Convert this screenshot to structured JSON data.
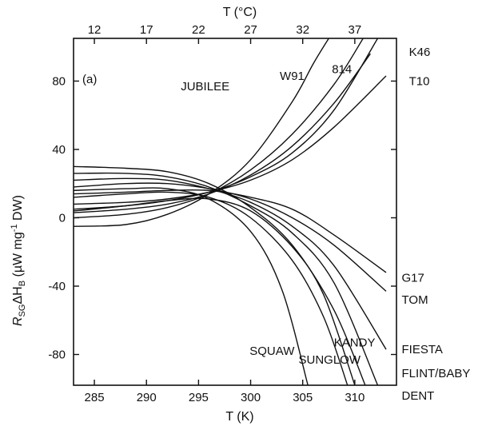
{
  "chart_data": {
    "type": "line",
    "panel_label": "(a)",
    "xlabel": "T (K)",
    "x2label": "T (°C)",
    "ylabel_main": "R",
    "ylabel_sub": "SG",
    "ylabel_mid": "ΔH",
    "ylabel_sub2": "B",
    "ylabel_unit": " (µW mg",
    "ylabel_sup": "-1",
    "ylabel_end": " DW)",
    "xlim": [
      283,
      314
    ],
    "ylim": [
      -98,
      105
    ],
    "xticks": [
      {
        "value": 285,
        "label": "285"
      },
      {
        "value": 290,
        "label": "290"
      },
      {
        "value": 295,
        "label": "295"
      },
      {
        "value": 300,
        "label": "300"
      },
      {
        "value": 305,
        "label": "305"
      },
      {
        "value": 310,
        "label": "310"
      }
    ],
    "x2ticks": [
      {
        "value": 12,
        "label": "12"
      },
      {
        "value": 17,
        "label": "17"
      },
      {
        "value": 22,
        "label": "22"
      },
      {
        "value": 27,
        "label": "27"
      },
      {
        "value": 32,
        "label": "32"
      },
      {
        "value": 37,
        "label": "37"
      }
    ],
    "yticks": [
      {
        "value": 80,
        "label": "80"
      },
      {
        "value": 40,
        "label": "40"
      },
      {
        "value": 0,
        "label": "0"
      },
      {
        "value": -40,
        "label": "-40"
      },
      {
        "value": -80,
        "label": "-80"
      }
    ],
    "series": [
      {
        "name": "JUBILEE",
        "x": [
          283,
          288,
          292,
          296,
          300,
          304,
          306,
          307.5
        ],
        "y": [
          -5,
          -4,
          2,
          14,
          34,
          68,
          90,
          105
        ]
      },
      {
        "name": "W91",
        "x": [
          283,
          288,
          292,
          296,
          300,
          304,
          308,
          310.8
        ],
        "y": [
          0,
          2,
          6,
          14,
          28,
          49,
          78,
          105
        ]
      },
      {
        "name": "814",
        "x": [
          283,
          288,
          292,
          296,
          300,
          304,
          308,
          311.5
        ],
        "y": [
          3,
          5,
          8,
          14,
          25,
          42,
          67,
          96
        ]
      },
      {
        "name": "K46",
        "x": [
          283,
          288,
          292,
          296,
          300,
          304,
          308,
          312.2
        ],
        "y": [
          5,
          7,
          10,
          15,
          24,
          38,
          63,
          105
        ]
      },
      {
        "name": "T10",
        "x": [
          283,
          288,
          292,
          296,
          300,
          304,
          308,
          313
        ],
        "y": [
          8,
          9,
          11,
          15,
          22,
          34,
          53,
          83
        ]
      },
      {
        "name": "G17",
        "x": [
          283,
          288,
          292,
          296,
          300,
          304,
          308,
          313
        ],
        "y": [
          14,
          15,
          16,
          16,
          12,
          5,
          -10,
          -32
        ]
      },
      {
        "name": "TOM",
        "x": [
          283,
          288,
          292,
          296,
          300,
          304,
          308,
          313
        ],
        "y": [
          18,
          20,
          20,
          17,
          11,
          0,
          -16,
          -43
        ]
      },
      {
        "name": "FIESTA",
        "x": [
          283,
          288,
          292,
          296,
          300,
          304,
          308,
          313
        ],
        "y": [
          22,
          23,
          22,
          17,
          9,
          -5,
          -28,
          -77
        ]
      },
      {
        "name": "FLINT/BABY",
        "x": [
          283,
          288,
          292,
          296,
          300,
          304,
          308,
          312.2
        ],
        "y": [
          26,
          26,
          24,
          18,
          7,
          -9,
          -38,
          -98
        ]
      },
      {
        "name": "DENT",
        "x": [
          283,
          288,
          292,
          296,
          300,
          304,
          308,
          311
        ],
        "y": [
          30,
          29,
          27,
          20,
          6,
          -16,
          -54,
          -98
        ]
      },
      {
        "name": "SUNGLOW",
        "x": [
          283,
          288,
          292,
          296,
          300,
          304,
          307,
          310
        ],
        "y": [
          4,
          7,
          10,
          11,
          4,
          -17,
          -45,
          -98
        ]
      },
      {
        "name": "KANDY",
        "x": [
          283,
          288,
          292,
          296,
          300,
          304,
          307,
          309.3
        ],
        "y": [
          12,
          14,
          15,
          12,
          0,
          -25,
          -58,
          -98
        ]
      },
      {
        "name": "SQUAW",
        "x": [
          283,
          288,
          292,
          296,
          300,
          303,
          305.5
        ],
        "y": [
          16,
          17,
          17,
          11,
          -8,
          -42,
          -98
        ]
      }
    ],
    "annotations": [
      {
        "text": "JUBILEE",
        "x": 293.3,
        "y": 77
      },
      {
        "text": "W91",
        "x": 302.8,
        "y": 83
      },
      {
        "text": "814",
        "x": 307.8,
        "y": 87
      },
      {
        "text": "K46",
        "x": 315.2,
        "y": 97
      },
      {
        "text": "T10",
        "x": 315.2,
        "y": 80
      },
      {
        "text": "G17",
        "x": 314.5,
        "y": -35
      },
      {
        "text": "TOM",
        "x": 314.5,
        "y": -48
      },
      {
        "text": "FIESTA",
        "x": 314.5,
        "y": -77
      },
      {
        "text": "FLINT/BABY",
        "x": 314.5,
        "y": -91
      },
      {
        "text": "DENT",
        "x": 314.5,
        "y": -104
      },
      {
        "text": "SUNGLOW",
        "x": 304.6,
        "y": -83
      },
      {
        "text": "KANDY",
        "x": 308.0,
        "y": -73
      },
      {
        "text": "SQUAW",
        "x": 299.9,
        "y": -78
      }
    ],
    "grid": false
  }
}
